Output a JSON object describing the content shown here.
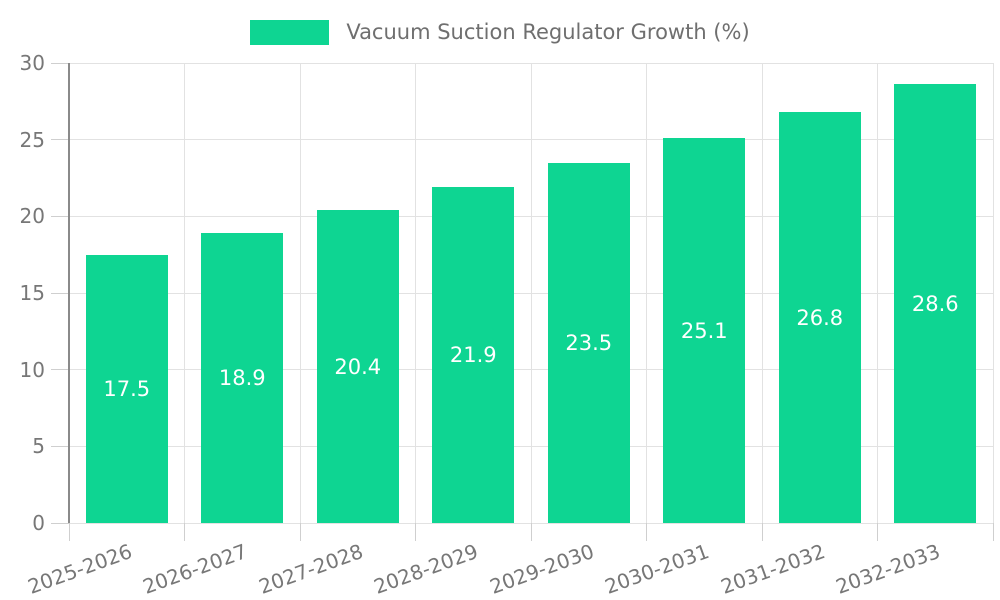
{
  "chart_data": {
    "type": "bar",
    "title": "Vacuum Suction Regulator Growth (%)",
    "categories": [
      "2025-2026",
      "2026-2027",
      "2027-2028",
      "2028-2029",
      "2029-2030",
      "2030-2031",
      "2031-2032",
      "2032-2033"
    ],
    "values": [
      17.5,
      18.9,
      20.4,
      21.9,
      23.5,
      25.1,
      26.8,
      28.6
    ],
    "value_labels": [
      "17.5",
      "18.9",
      "20.4",
      "21.9",
      "23.5",
      "25.1",
      "26.8",
      "28.6"
    ],
    "xlabel": "",
    "ylabel": "",
    "ylim": [
      0,
      30
    ],
    "yticks": [
      0,
      5,
      10,
      15,
      20,
      25,
      30
    ],
    "grid": "horizontal gridlines at every 5 units and vertical gridlines at category boundaries",
    "legend_position": "top-center",
    "x_tick_rotation_deg": -20,
    "colors": {
      "bar": "#0ed592",
      "bar_label_text": "#ffffff",
      "axis_text": "#777777",
      "legend_text": "#6f6f6f",
      "gridline": "#e2e2e2",
      "tick": "#cfcfcf",
      "axis_spine": "#8a8a8a",
      "background": "#ffffff"
    }
  }
}
